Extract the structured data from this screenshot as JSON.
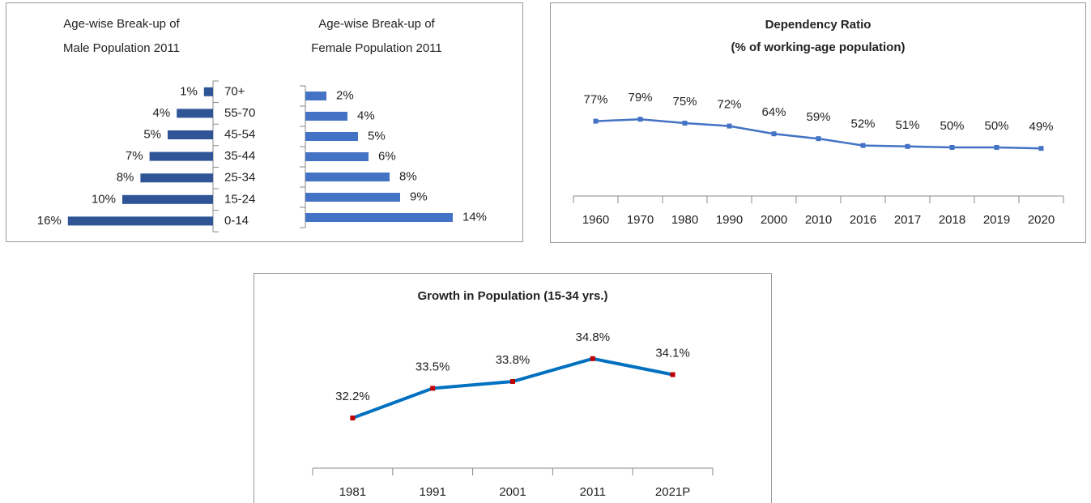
{
  "chart_data": [
    {
      "type": "hbar-left",
      "title": [
        "Age-wise Break-up of",
        "Male Population 2011"
      ],
      "categories": [
        "70+",
        "55-70",
        "45-54",
        "35-44",
        "25-34",
        "15-24",
        "0-14"
      ],
      "values": [
        1,
        4,
        5,
        7,
        8,
        10,
        16
      ],
      "value_labels": [
        "1%",
        "4%",
        "5%",
        "7%",
        "8%",
        "10%",
        "16%"
      ],
      "color": "#2f5597"
    },
    {
      "type": "hbar-right",
      "title": [
        "Age-wise Break-up of",
        "Female Population 2011"
      ],
      "values": [
        2,
        4,
        5,
        6,
        8,
        9,
        14
      ],
      "value_labels": [
        "2%",
        "4%",
        "5%",
        "6%",
        "8%",
        "9%",
        "14%"
      ],
      "color": "#4472c4"
    },
    {
      "type": "line",
      "title": "Dependency Ratio",
      "subtitle": "(% of working-age population)",
      "categories": [
        "1960",
        "1970",
        "1980",
        "1990",
        "2000",
        "2010",
        "2016",
        "2017",
        "2018",
        "2019",
        "2020"
      ],
      "values": [
        77,
        79,
        75,
        72,
        64,
        59,
        52,
        51,
        50,
        50,
        49
      ],
      "value_labels": [
        "77%",
        "79%",
        "75%",
        "72%",
        "64%",
        "59%",
        "52%",
        "51%",
        "50%",
        "50%",
        "49%"
      ],
      "ylim": [
        0,
        100
      ],
      "color": "#4472c4",
      "marker_color": "#4472c4"
    },
    {
      "type": "line",
      "title": "Growth in Population (15-34 yrs.)",
      "categories": [
        "1981",
        "1991",
        "2001",
        "2011",
        "2021P"
      ],
      "values": [
        32.2,
        33.5,
        33.8,
        34.8,
        34.1
      ],
      "value_labels": [
        "32.2%",
        "33.5%",
        "33.8%",
        "34.8%",
        "34.1%"
      ],
      "ylim": [
        30,
        36
      ],
      "color": "#0070c0",
      "marker_color": "#c00000"
    }
  ]
}
